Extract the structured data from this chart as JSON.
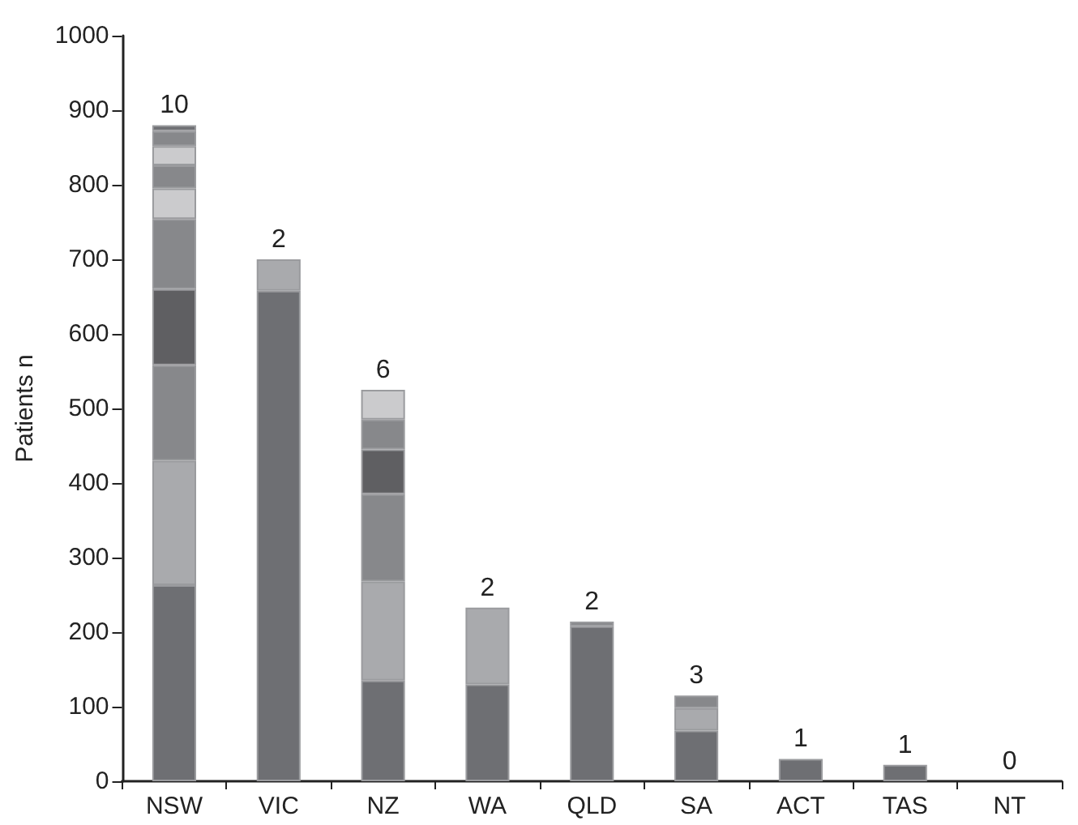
{
  "chart_data": {
    "type": "bar",
    "stacked": true,
    "ylabel": "Patients n",
    "categories": [
      "NSW",
      "VIC",
      "NZ",
      "WA",
      "QLD",
      "SA",
      "ACT",
      "TAS",
      "NT"
    ],
    "ylim": [
      0,
      1000
    ],
    "yticks": [
      0,
      100,
      200,
      300,
      400,
      500,
      600,
      700,
      800,
      900,
      1000
    ],
    "grid": false,
    "series": [
      {
        "values": [
          263,
          658,
          135,
          130,
          208,
          68,
          30,
          22,
          0
        ],
        "colors": [
          "#6e6f73",
          "#6e6f73",
          "#6e6f73",
          "#6e6f73",
          "#6e6f73",
          "#6e6f73",
          "#6e6f73",
          "#6e6f73",
          "#6e6f73"
        ]
      },
      {
        "values": [
          167,
          42,
          133,
          103,
          6,
          30,
          null,
          null,
          null
        ],
        "colors": [
          "#a9aaad",
          "#a9aaad",
          "#a9aaad",
          "#a9aaad",
          "#87888b",
          "#a9aaad",
          null,
          null,
          null
        ]
      },
      {
        "values": [
          128,
          null,
          117,
          null,
          null,
          17,
          null,
          null,
          null
        ],
        "colors": [
          "#87888b",
          null,
          "#87888b",
          null,
          null,
          "#87888b",
          null,
          null,
          null
        ]
      },
      {
        "values": [
          102,
          null,
          60,
          null,
          null,
          null,
          null,
          null,
          null
        ],
        "colors": [
          "#5f5f62",
          null,
          "#5f5f62",
          null,
          null,
          null,
          null,
          null,
          null
        ]
      },
      {
        "values": [
          94,
          null,
          40,
          null,
          null,
          null,
          null,
          null,
          null
        ],
        "colors": [
          "#87888b",
          null,
          "#87888b",
          null,
          null,
          null,
          null,
          null,
          null
        ]
      },
      {
        "values": [
          41,
          null,
          40,
          null,
          null,
          null,
          null,
          null,
          null
        ],
        "colors": [
          "#cbcbcd",
          null,
          "#cbcbcd",
          null,
          null,
          null,
          null,
          null,
          null
        ]
      },
      {
        "values": [
          31,
          null,
          null,
          null,
          null,
          null,
          null,
          null,
          null
        ],
        "colors": [
          "#87888b",
          null,
          null,
          null,
          null,
          null,
          null,
          null,
          null
        ]
      },
      {
        "values": [
          26,
          null,
          null,
          null,
          null,
          null,
          null,
          null,
          null
        ],
        "colors": [
          "#cbcbcd",
          null,
          null,
          null,
          null,
          null,
          null,
          null,
          null
        ]
      },
      {
        "values": [
          20,
          null,
          null,
          null,
          null,
          null,
          null,
          null,
          null
        ],
        "colors": [
          "#87888b",
          null,
          null,
          null,
          null,
          null,
          null,
          null,
          null
        ]
      },
      {
        "values": [
          8,
          null,
          null,
          null,
          null,
          null,
          null,
          null,
          null
        ],
        "colors": [
          "#6e6f73",
          null,
          null,
          null,
          null,
          null,
          null,
          null,
          null
        ]
      }
    ],
    "annotations": [
      {
        "text": "10",
        "x": "NSW",
        "y": 880
      },
      {
        "text": "2",
        "x": "VIC",
        "y": 700
      },
      {
        "text": "6",
        "x": "NZ",
        "y": 525
      },
      {
        "text": "2",
        "x": "WA",
        "y": 233
      },
      {
        "text": "2",
        "x": "QLD",
        "y": 214
      },
      {
        "text": "3",
        "x": "SA",
        "y": 115
      },
      {
        "text": "1",
        "x": "ACT",
        "y": 30
      },
      {
        "text": "1",
        "x": "TAS",
        "y": 22
      },
      {
        "text": "0",
        "x": "NT",
        "y": 0
      }
    ]
  }
}
